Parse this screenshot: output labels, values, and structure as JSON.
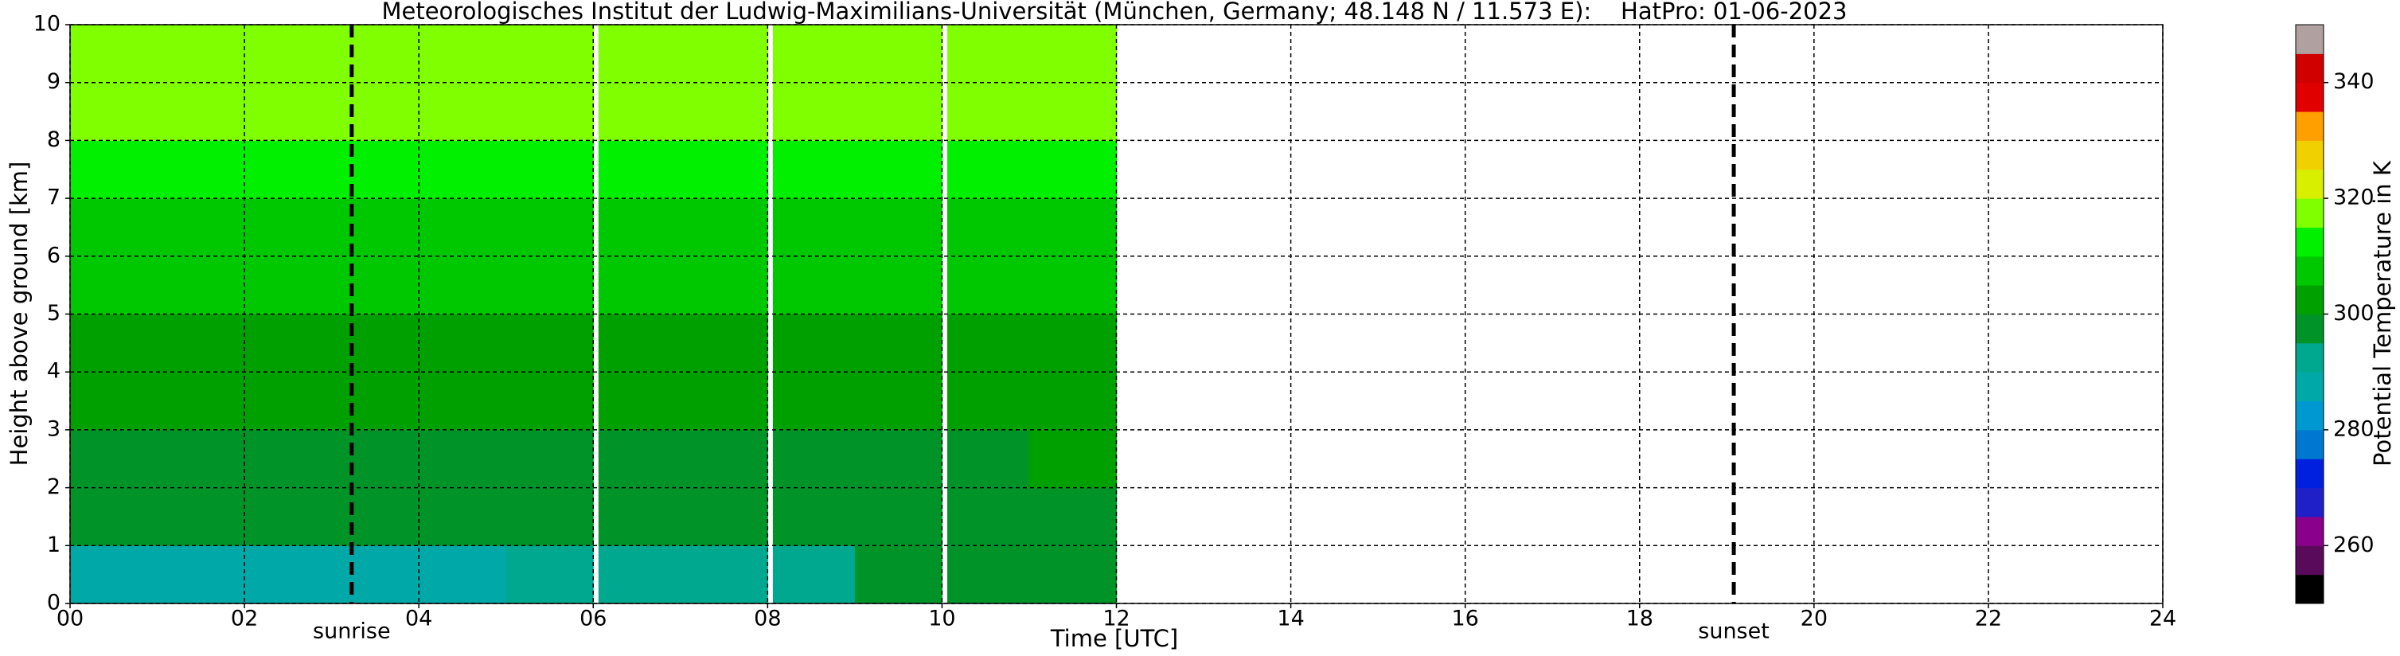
{
  "chart_data": {
    "type": "heatmap",
    "title": "Meteorologisches Institut der Ludwig-Maximilians-Universität (München, Germany; 48.148 N / 11.573 E):    HatPro: 01-06-2023",
    "x_label": "Time [UTC]",
    "y_label": "Height above ground [km]",
    "colorbar_label": "Potential Temperature in K",
    "xlim": [
      0,
      24
    ],
    "xticks": [
      {
        "value": 0,
        "label": "00"
      },
      {
        "value": 2,
        "label": "02"
      },
      {
        "value": 4,
        "label": "04"
      },
      {
        "value": 6,
        "label": "06"
      },
      {
        "value": 8,
        "label": "08"
      },
      {
        "value": 10,
        "label": "10"
      },
      {
        "value": 12,
        "label": "12"
      },
      {
        "value": 14,
        "label": "14"
      },
      {
        "value": 16,
        "label": "16"
      },
      {
        "value": 18,
        "label": "18"
      },
      {
        "value": 20,
        "label": "20"
      },
      {
        "value": 22,
        "label": "22"
      },
      {
        "value": 24,
        "label": "24"
      }
    ],
    "ylim": [
      0,
      10
    ],
    "yticks": [
      0,
      1,
      2,
      3,
      4,
      5,
      6,
      7,
      8,
      9,
      10
    ],
    "grid": true,
    "x_bins": [
      0,
      1,
      2,
      3,
      4,
      5,
      6,
      6.06,
      7,
      8,
      8.06,
      9,
      10,
      10.06,
      11,
      12
    ],
    "y_bins": [
      0,
      1,
      2,
      3,
      4,
      5,
      6,
      7,
      8,
      9,
      10
    ],
    "values": [
      [
        289,
        289,
        289,
        289,
        289,
        290,
        null,
        291,
        292,
        null,
        294,
        295,
        null,
        297,
        298
      ],
      [
        297,
        297,
        297,
        297,
        297,
        297,
        null,
        297,
        297,
        null,
        297,
        298,
        null,
        298,
        299
      ],
      [
        299,
        299,
        299,
        299,
        299,
        299,
        null,
        299,
        299,
        null,
        299,
        299,
        null,
        299,
        300
      ],
      [
        301,
        301,
        301,
        301,
        301,
        301,
        null,
        301,
        301,
        null,
        301,
        301,
        null,
        301,
        301
      ],
      [
        303,
        303,
        303,
        303,
        303,
        303,
        null,
        303,
        303,
        null,
        303,
        303,
        null,
        303,
        303
      ],
      [
        306,
        306,
        306,
        306,
        306,
        306,
        null,
        306,
        306,
        null,
        306,
        306,
        null,
        306,
        306
      ],
      [
        309,
        309,
        309,
        309,
        309,
        309,
        null,
        309,
        309,
        null,
        309,
        309,
        null,
        309,
        309
      ],
      [
        312,
        312,
        312,
        312,
        312,
        312,
        null,
        312,
        312,
        null,
        312,
        312,
        null,
        312,
        312
      ],
      [
        315,
        315,
        315,
        315,
        315,
        315,
        null,
        315,
        315,
        null,
        315,
        315,
        null,
        315,
        315
      ],
      [
        318,
        318,
        318,
        318,
        318,
        318,
        null,
        318,
        318,
        null,
        318,
        318,
        null,
        318,
        318
      ]
    ],
    "clim": [
      250,
      350
    ],
    "cticks": [
      260,
      280,
      300,
      320,
      340
    ],
    "colors": [
      "#000000",
      "#5a0a5a",
      "#8a008a",
      "#2020c8",
      "#0020e0",
      "#0078d0",
      "#0098d0",
      "#00a8a8",
      "#00a890",
      "#009428",
      "#00a000",
      "#00c800",
      "#00f000",
      "#80ff00",
      "#d8f000",
      "#f0d000",
      "#ffa000",
      "#e00000",
      "#d00000",
      "#b0a0a0"
    ],
    "annotations": [
      {
        "label": "sunrise",
        "x": 3.23
      },
      {
        "label": "sunset",
        "x": 19.08
      }
    ]
  }
}
